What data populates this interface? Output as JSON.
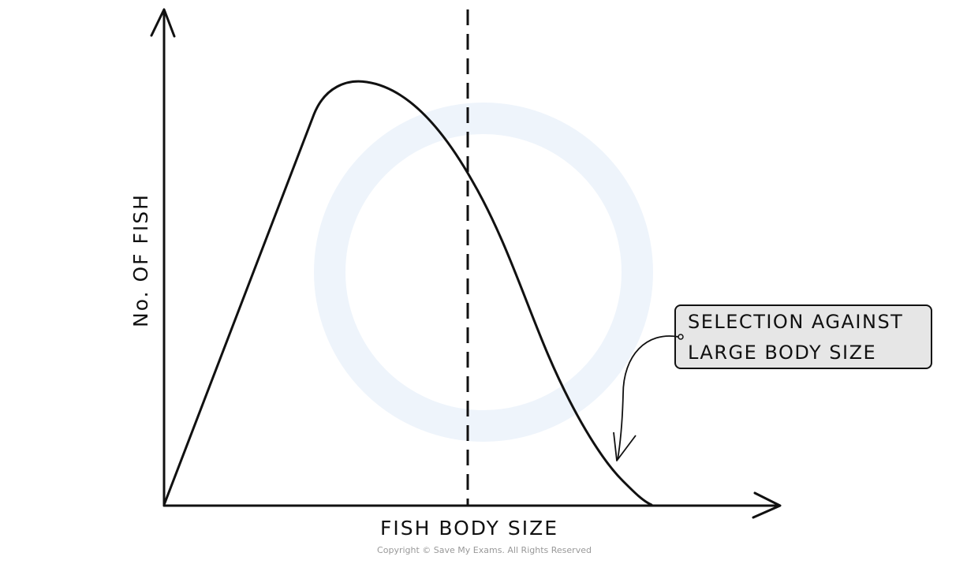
{
  "y_axis_label": "No. OF FISH",
  "x_axis_label": "FISH BODY SIZE",
  "annotation": {
    "lines": [
      "SELECTION AGAINST",
      "LARGE BODY SIZE"
    ]
  },
  "copyright": "Copyright © Save My Exams. All Rights Reserved"
}
